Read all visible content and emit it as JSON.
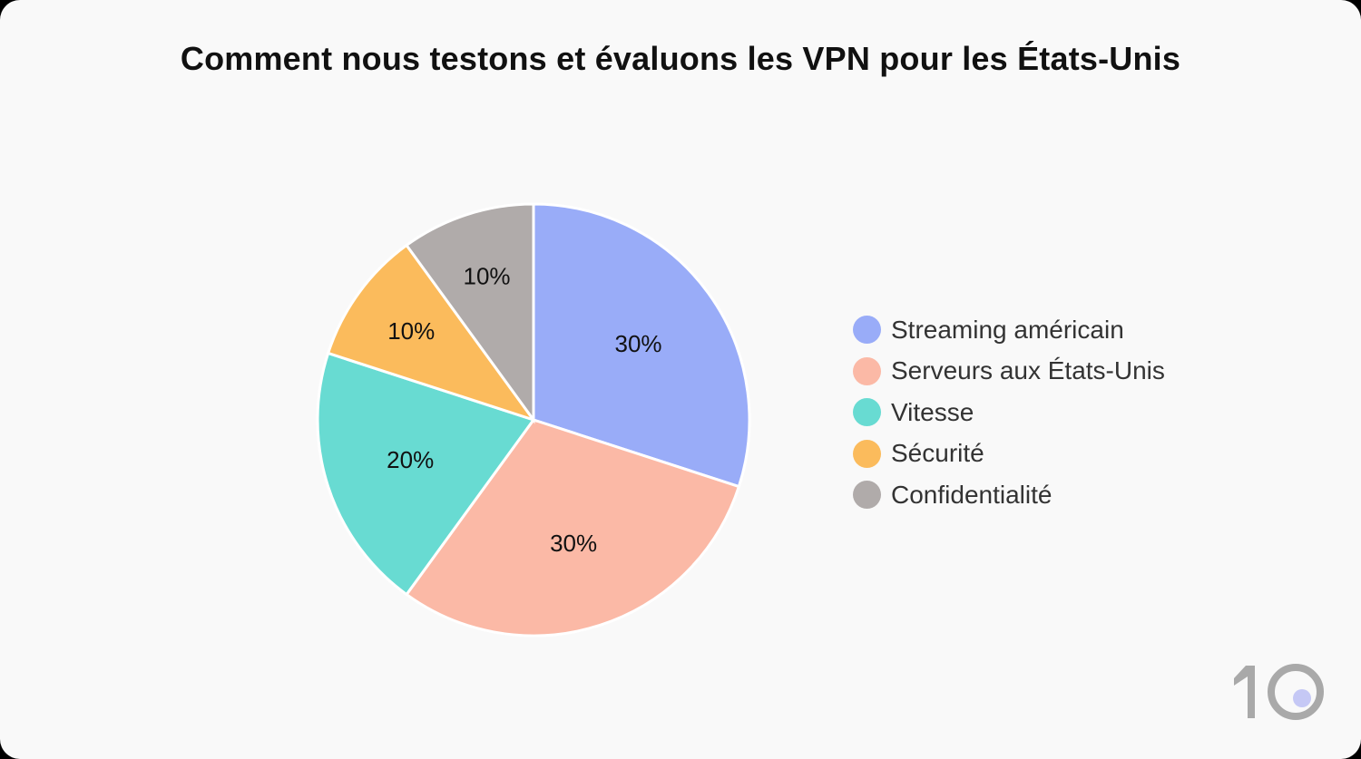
{
  "chart_data": {
    "type": "pie",
    "title": "Comment nous testons et évaluons les VPN pour les États-Unis",
    "start": "top",
    "direction": "clockwise",
    "legend_position": "right",
    "slices": [
      {
        "label": "Streaming américain",
        "value": 30,
        "display": "30%",
        "color": "#99acf8"
      },
      {
        "label": "Serveurs aux États-Unis",
        "value": 30,
        "display": "30%",
        "color": "#fbb9a6"
      },
      {
        "label": "Vitesse",
        "value": 20,
        "display": "20%",
        "color": "#68dbd2"
      },
      {
        "label": "Sécurité",
        "value": 10,
        "display": "10%",
        "color": "#fbbb5c"
      },
      {
        "label": "Confidentialité",
        "value": 10,
        "display": "10%",
        "color": "#b0abaa"
      }
    ]
  },
  "logo": {
    "text": "10",
    "color": "#a9a9a9",
    "dot_color": "#c5c8f5"
  }
}
